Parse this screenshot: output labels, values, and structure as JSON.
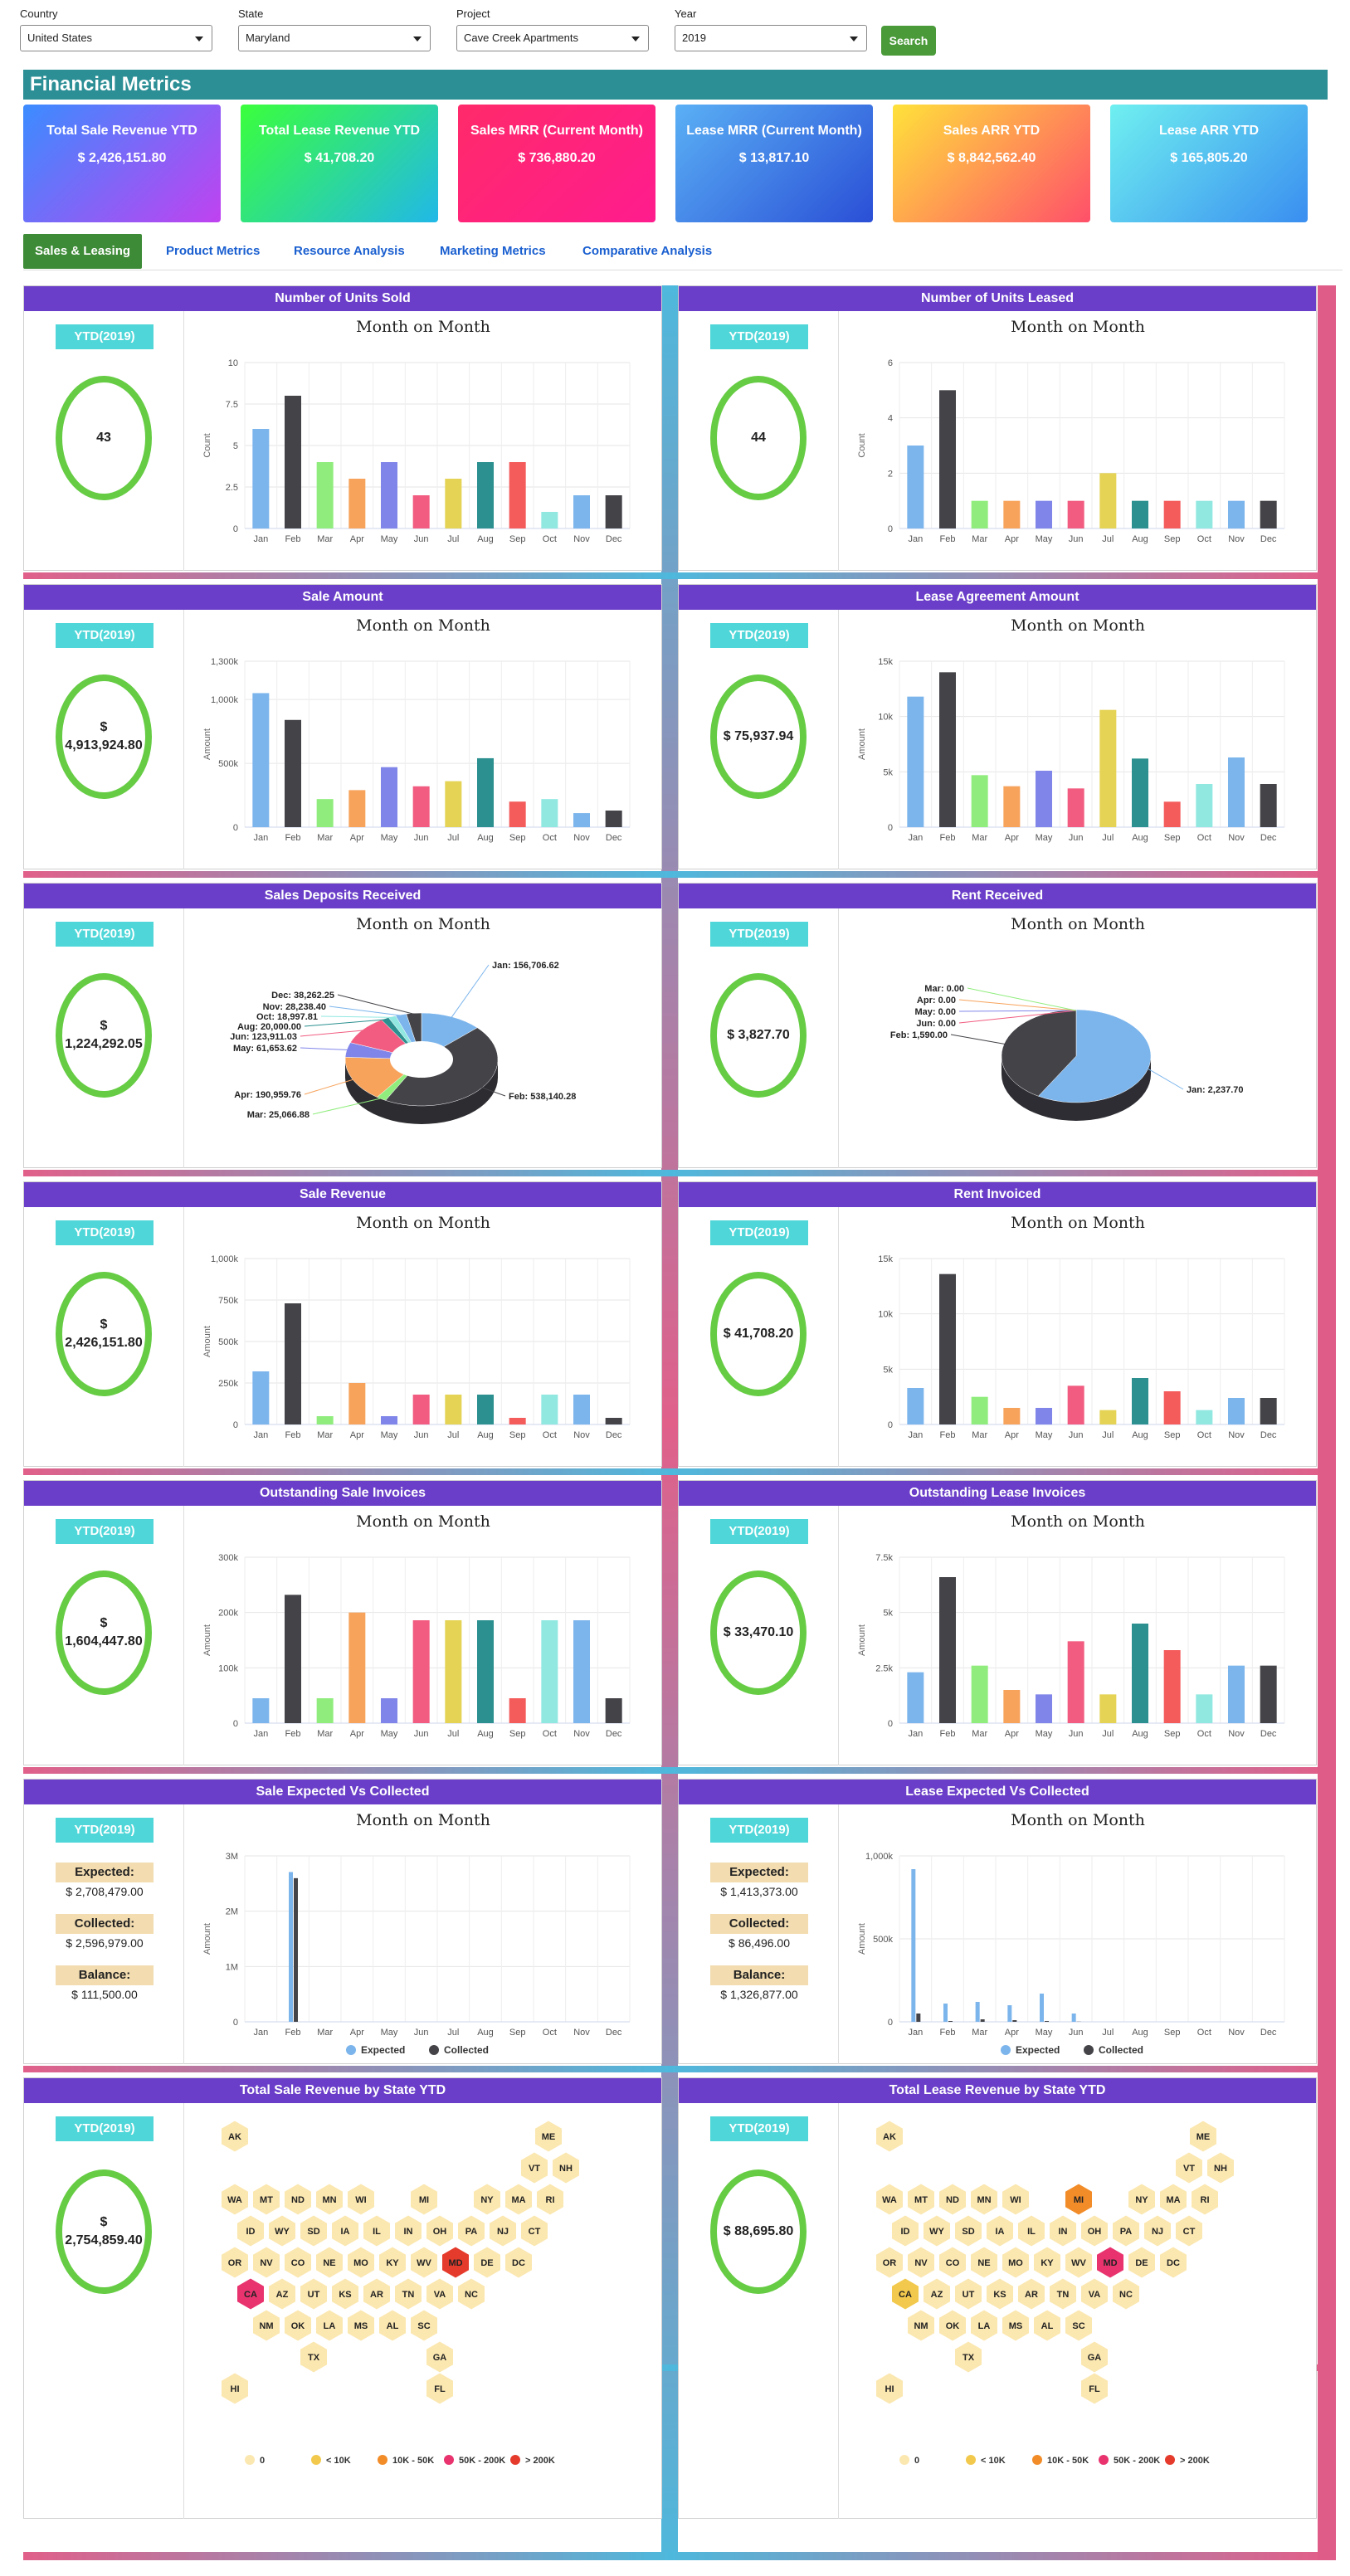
{
  "filters": {
    "country": {
      "label": "Country",
      "value": "United States"
    },
    "state": {
      "label": "State",
      "value": "Maryland"
    },
    "project": {
      "label": "Project",
      "value": "Cave Creek Apartments"
    },
    "year": {
      "label": "Year",
      "value": "2019"
    },
    "search_label": "Search"
  },
  "financial_metrics_title": "Financial Metrics",
  "kpis": [
    {
      "title": "Total Sale Revenue YTD",
      "value": "$ 2,426,151.80"
    },
    {
      "title": "Total Lease Revenue YTD",
      "value": "$ 41,708.20"
    },
    {
      "title": "Sales MRR (Current Month)",
      "value": "$ 736,880.20"
    },
    {
      "title": "Lease MRR (Current Month)",
      "value": "$ 13,817.10"
    },
    {
      "title": "Sales ARR YTD",
      "value": "$ 8,842,562.40"
    },
    {
      "title": "Lease ARR YTD",
      "value": "$ 165,805.20"
    }
  ],
  "tabs": [
    "Sales & Leasing",
    "Product Metrics",
    "Resource Analysis",
    "Marketing Metrics",
    "Comparative Analysis"
  ],
  "ytd_label": "YTD(2019)",
  "month_title": "Month on Month",
  "colors": {
    "Jan": "#7cb5ec",
    "Feb": "#434348",
    "Mar": "#90ed7d",
    "Apr": "#f7a35c",
    "May": "#8085e9",
    "Jun": "#f15c80",
    "Jul": "#e4d354",
    "Aug": "#2b908f",
    "Sep": "#f45b5b",
    "Oct": "#91e8e1",
    "Nov": "#7cb5ec",
    "Dec": "#434348"
  },
  "months": [
    "Jan",
    "Feb",
    "Mar",
    "Apr",
    "May",
    "Jun",
    "Jul",
    "Aug",
    "Sep",
    "Oct",
    "Nov",
    "Dec"
  ],
  "panels": [
    {
      "title": "Number of Units Sold",
      "ytd": "43"
    },
    {
      "title": "Number of Units Leased",
      "ytd": "44"
    },
    {
      "title": "Sale Amount",
      "ytd": "$ 4,913,924.80"
    },
    {
      "title": "Lease Agreement Amount",
      "ytd": "$ 75,937.94"
    },
    {
      "title": "Sales Deposits Received",
      "ytd": "$ 1,224,292.05"
    },
    {
      "title": "Rent Received",
      "ytd": "$ 3,827.70"
    },
    {
      "title": "Sale Revenue",
      "ytd": "$ 2,426,151.80"
    },
    {
      "title": "Rent Invoiced",
      "ytd": "$ 41,708.20"
    },
    {
      "title": "Outstanding Sale Invoices",
      "ytd": "$ 1,604,447.80"
    },
    {
      "title": "Outstanding Lease Invoices",
      "ytd": "$ 33,470.10"
    },
    {
      "title": "Sale Expected Vs Collected",
      "expected": "$ 2,708,479.00",
      "collected": "$ 2,596,979.00",
      "balance": "$ 111,500.00"
    },
    {
      "title": "Lease Expected Vs Collected",
      "expected": "$ 1,413,373.00",
      "collected": "$ 86,496.00",
      "balance": "$ 1,326,877.00"
    },
    {
      "title": "Total Sale Revenue by State YTD",
      "ytd": "$ 2,754,859.40"
    },
    {
      "title": "Total Lease Revenue by State YTD",
      "ytd": "$ 88,695.80"
    }
  ],
  "ev_labels": {
    "expected": "Expected:",
    "collected": "Collected:",
    "balance": "Balance:"
  },
  "chart_data": [
    {
      "type": "bar",
      "title": "Month on Month",
      "ylabel": "Count",
      "categories": [
        "Jan",
        "Feb",
        "Mar",
        "Apr",
        "May",
        "Jun",
        "Jul",
        "Aug",
        "Sep",
        "Oct",
        "Nov",
        "Dec"
      ],
      "values": [
        6,
        8,
        4,
        3,
        4,
        2,
        3,
        4,
        4,
        1,
        2,
        2
      ],
      "ylim": [
        0,
        10
      ],
      "ticks": [
        "0",
        "2.5",
        "5",
        "7.5",
        "10"
      ]
    },
    {
      "type": "bar",
      "title": "Month on Month",
      "ylabel": "Count",
      "categories": [
        "Jan",
        "Feb",
        "Mar",
        "Apr",
        "May",
        "Jun",
        "Jul",
        "Aug",
        "Sep",
        "Oct",
        "Nov",
        "Dec"
      ],
      "values": [
        3,
        5,
        1,
        1,
        1,
        1,
        2,
        1,
        1,
        1,
        1,
        1
      ],
      "ylim": [
        0,
        6
      ],
      "ticks": [
        "0",
        "2",
        "4",
        "6"
      ]
    },
    {
      "type": "bar",
      "title": "Month on Month",
      "ylabel": "Amount",
      "categories": [
        "Jan",
        "Feb",
        "Mar",
        "Apr",
        "May",
        "Jun",
        "Jul",
        "Aug",
        "Sep",
        "Oct",
        "Nov",
        "Dec"
      ],
      "values": [
        1050000,
        840000,
        220000,
        290000,
        470000,
        320000,
        360000,
        540000,
        200000,
        220000,
        110000,
        130000
      ],
      "ylim": [
        0,
        1300000
      ],
      "ticks": [
        "0",
        "500k",
        "1,000k",
        "1,300k"
      ],
      "tickvals": [
        0,
        500000,
        1000000,
        1300000
      ]
    },
    {
      "type": "bar",
      "title": "Month on Month",
      "ylabel": "Amount",
      "categories": [
        "Jan",
        "Feb",
        "Mar",
        "Apr",
        "May",
        "Jun",
        "Jul",
        "Aug",
        "Sep",
        "Oct",
        "Nov",
        "Dec"
      ],
      "values": [
        11800,
        14000,
        4700,
        3700,
        5100,
        3500,
        10600,
        6200,
        2300,
        3900,
        6300,
        3900
      ],
      "ylim": [
        0,
        15000
      ],
      "ticks": [
        "0",
        "5k",
        "10k",
        "15k"
      ]
    },
    {
      "type": "pie",
      "title": "Month on Month",
      "slices": [
        {
          "label": "Jan: 156,706.62",
          "value": 156706.62
        },
        {
          "label": "Feb: 538,140.28",
          "value": 538140.28
        },
        {
          "label": "Mar: 25,066.88",
          "value": 25066.88
        },
        {
          "label": "Apr: 190,959.76",
          "value": 190959.76
        },
        {
          "label": "May: 61,653.62",
          "value": 61653.62
        },
        {
          "label": "Jun: 123,911.03",
          "value": 123911.03
        },
        {
          "label": "Aug: 20,000.00",
          "value": 20000.0
        },
        {
          "label": "Oct: 18,997.81",
          "value": 18997.81
        },
        {
          "label": "Nov: 28,238.40",
          "value": 28238.4
        },
        {
          "label": "Dec: 38,262.25",
          "value": 38262.25
        }
      ]
    },
    {
      "type": "pie",
      "title": "Month on Month",
      "slices": [
        {
          "label": "Jan: 2,237.70",
          "value": 2237.7
        },
        {
          "label": "Feb: 1,590.00",
          "value": 1590.0
        },
        {
          "label": "Jun: 0.00",
          "value": 0
        },
        {
          "label": "May: 0.00",
          "value": 0
        },
        {
          "label": "Apr: 0.00",
          "value": 0
        },
        {
          "label": "Mar: 0.00",
          "value": 0
        }
      ]
    },
    {
      "type": "bar",
      "title": "Month on Month",
      "ylabel": "Amount",
      "categories": [
        "Jan",
        "Feb",
        "Mar",
        "Apr",
        "May",
        "Jun",
        "Jul",
        "Aug",
        "Sep",
        "Oct",
        "Nov",
        "Dec"
      ],
      "values": [
        320000,
        730000,
        50000,
        250000,
        50000,
        180000,
        180000,
        180000,
        40000,
        180000,
        180000,
        40000
      ],
      "ylim": [
        0,
        1000000
      ],
      "ticks": [
        "0",
        "250k",
        "500k",
        "750k",
        "1,000k"
      ]
    },
    {
      "type": "bar",
      "title": "Month on Month",
      "ylabel": "",
      "categories": [
        "Jan",
        "Feb",
        "Mar",
        "Apr",
        "May",
        "Jun",
        "Jul",
        "Aug",
        "Sep",
        "Oct",
        "Nov",
        "Dec"
      ],
      "values": [
        3300,
        13600,
        2500,
        1500,
        1500,
        3500,
        1300,
        4200,
        3000,
        1300,
        2400,
        2400
      ],
      "ylim": [
        0,
        15000
      ],
      "ticks": [
        "0",
        "5k",
        "10k",
        "15k"
      ]
    },
    {
      "type": "bar",
      "title": "Month on Month",
      "ylabel": "Amount",
      "categories": [
        "Jan",
        "Feb",
        "Mar",
        "Apr",
        "May",
        "Jun",
        "Jul",
        "Aug",
        "Sep",
        "Oct",
        "Nov",
        "Dec"
      ],
      "values": [
        45000,
        232000,
        45000,
        200000,
        45000,
        186000,
        186000,
        186000,
        45000,
        186000,
        186000,
        45000
      ],
      "ylim": [
        0,
        300000
      ],
      "ticks": [
        "0",
        "100k",
        "200k",
        "300k"
      ]
    },
    {
      "type": "bar",
      "title": "Month on Month",
      "ylabel": "Amount",
      "categories": [
        "Jan",
        "Feb",
        "Mar",
        "Apr",
        "May",
        "Jun",
        "Jul",
        "Aug",
        "Sep",
        "Oct",
        "Nov",
        "Dec"
      ],
      "values": [
        2300,
        6600,
        2600,
        1500,
        1300,
        3700,
        1300,
        4500,
        3300,
        1300,
        2600,
        2600
      ],
      "ylim": [
        0,
        7500
      ],
      "ticks": [
        "0",
        "2.5k",
        "5k",
        "7.5k"
      ]
    },
    {
      "type": "bar",
      "title": "Month on Month",
      "ylabel": "Amount",
      "categories": [
        "Jan",
        "Feb",
        "Mar",
        "Apr",
        "May",
        "Jun",
        "Jul",
        "Aug",
        "Sep",
        "Oct",
        "Nov",
        "Dec"
      ],
      "series": [
        {
          "name": "Expected",
          "values": [
            0,
            2708479,
            0,
            0,
            0,
            0,
            0,
            0,
            0,
            0,
            0,
            0
          ]
        },
        {
          "name": "Collected",
          "values": [
            0,
            2596979,
            0,
            0,
            0,
            0,
            0,
            0,
            0,
            0,
            0,
            0
          ]
        }
      ],
      "ylim": [
        0,
        3000000
      ],
      "ticks": [
        "0",
        "1M",
        "2M",
        "3M"
      ]
    },
    {
      "type": "bar",
      "title": "Month on Month",
      "ylabel": "Amount",
      "categories": [
        "Jan",
        "Feb",
        "Mar",
        "Apr",
        "May",
        "Jun",
        "Jul",
        "Aug",
        "Sep",
        "Oct",
        "Nov",
        "Dec"
      ],
      "series": [
        {
          "name": "Expected",
          "values": [
            920000,
            110000,
            120000,
            100000,
            170000,
            50000,
            0,
            0,
            0,
            0,
            0,
            0
          ]
        },
        {
          "name": "Collected",
          "values": [
            50000,
            5000,
            15000,
            10000,
            5000,
            1000,
            0,
            0,
            0,
            0,
            0,
            0
          ]
        }
      ],
      "ylim": [
        0,
        1000000
      ],
      "ticks": [
        "0",
        "500k",
        "1,000k"
      ]
    }
  ],
  "map": {
    "legend": [
      "0",
      "< 10K",
      "10K - 50K",
      "50K - 200K",
      "> 200K"
    ],
    "legend_colors": [
      "#fbe7b0",
      "#f2c94c",
      "#f28c28",
      "#e8336f",
      "#e53b2c"
    ],
    "rows": [
      [
        "AK",
        "",
        "",
        "",
        "",
        "",
        "",
        "",
        "",
        "",
        "",
        "ME"
      ],
      [
        "",
        "",
        "",
        "",
        "",
        "",
        "",
        "",
        "",
        "VT",
        "NH",
        ""
      ],
      [
        "WA",
        "MT",
        "ND",
        "MN",
        "WI",
        "",
        "MI",
        "",
        "NY",
        "MA",
        "RI",
        ""
      ],
      [
        "ID",
        "WY",
        "SD",
        "IA",
        "IL",
        "IN",
        "OH",
        "PA",
        "NJ",
        "CT",
        "",
        ""
      ],
      [
        "OR",
        "NV",
        "CO",
        "NE",
        "MO",
        "KY",
        "WV",
        "MD",
        "DE",
        "DC",
        "",
        ""
      ],
      [
        "CA",
        "AZ",
        "UT",
        "KS",
        "AR",
        "TN",
        "VA",
        "NC",
        "",
        "",
        "",
        ""
      ],
      [
        "",
        "NM",
        "OK",
        "LA",
        "MS",
        "AL",
        "SC",
        "",
        "",
        "",
        "",
        ""
      ],
      [
        "",
        "",
        "TX",
        "",
        "",
        "",
        "GA",
        "",
        "",
        "",
        "",
        ""
      ],
      [
        "HI",
        "",
        "",
        "",
        "",
        "",
        "FL",
        "",
        "",
        "",
        "",
        ""
      ]
    ],
    "sale_highlight": {
      "MD": "> 200K",
      "CA": "50K - 200K"
    },
    "lease_highlight": {
      "MD": "50K - 200K",
      "MI": "10K - 50K",
      "CA": "< 10K"
    }
  }
}
